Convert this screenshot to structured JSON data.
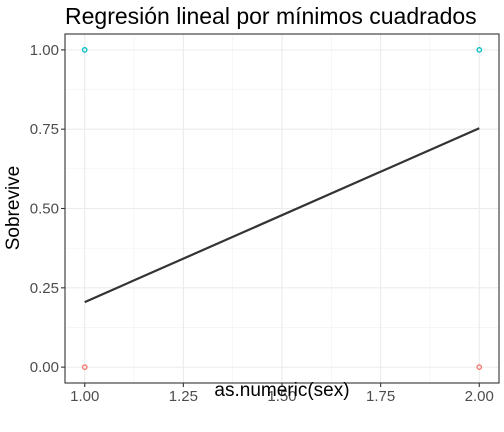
{
  "chart_data": {
    "type": "scatter",
    "title": "Regresión lineal por mínimos cuadrados",
    "xlabel": "as.numeric(sex)",
    "ylabel": "Sobrevive",
    "xlim": [
      0.95,
      2.05
    ],
    "ylim": [
      -0.05,
      1.05
    ],
    "x_ticks": [
      1.0,
      1.25,
      1.5,
      1.75,
      2.0
    ],
    "x_tick_labels": [
      "1.00",
      "1.25",
      "1.50",
      "1.75",
      "2.00"
    ],
    "y_ticks": [
      0.0,
      0.25,
      0.5,
      0.75,
      1.0
    ],
    "y_tick_labels": [
      "0.00",
      "0.25",
      "0.50",
      "0.75",
      "1.00"
    ],
    "grid": true,
    "theme": "bw",
    "points": [
      {
        "x": 1.0,
        "y": 1.0,
        "color": "#00BFC4"
      },
      {
        "x": 2.0,
        "y": 1.0,
        "color": "#00BFC4"
      },
      {
        "x": 1.0,
        "y": 0.0,
        "color": "#F8766D"
      },
      {
        "x": 2.0,
        "y": 0.0,
        "color": "#F8766D"
      }
    ],
    "regression_line": {
      "x": [
        1.0,
        2.0
      ],
      "y": [
        0.205,
        0.753
      ],
      "color": "#333333"
    }
  }
}
